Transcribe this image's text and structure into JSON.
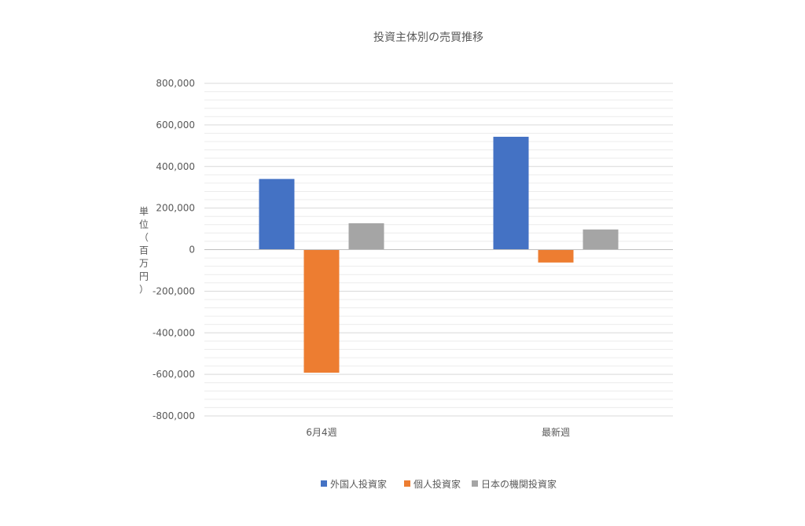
{
  "chart_data": {
    "type": "bar",
    "title": "投資主体別の売買推移",
    "ylabel": "単位（百万円）",
    "ylabel_chars": [
      "単",
      "位",
      "（",
      "百",
      "万",
      "円",
      "）"
    ],
    "categories": [
      "6月4週",
      "最新週"
    ],
    "series": [
      {
        "name": "外国人投資家",
        "color": "#4472C4",
        "values": [
          340000,
          543000
        ]
      },
      {
        "name": "個人投資家",
        "color": "#ED7D31",
        "values": [
          -592000,
          -62000
        ]
      },
      {
        "name": "日本の機関投資家",
        "color": "#A5A5A5",
        "values": [
          127000,
          97000
        ]
      }
    ],
    "ylim": [
      -800000,
      800000
    ],
    "major_ticks": [
      800000,
      600000,
      400000,
      200000,
      0,
      -200000,
      -400000,
      -600000,
      -800000
    ],
    "tick_labels": [
      "800,000",
      "600,000",
      "400,000",
      "200,000",
      "0",
      "-200,000",
      "-400,000",
      "-600,000",
      "-800,000"
    ],
    "minor_step": 40000,
    "grid": true,
    "legend_position": "bottom"
  }
}
